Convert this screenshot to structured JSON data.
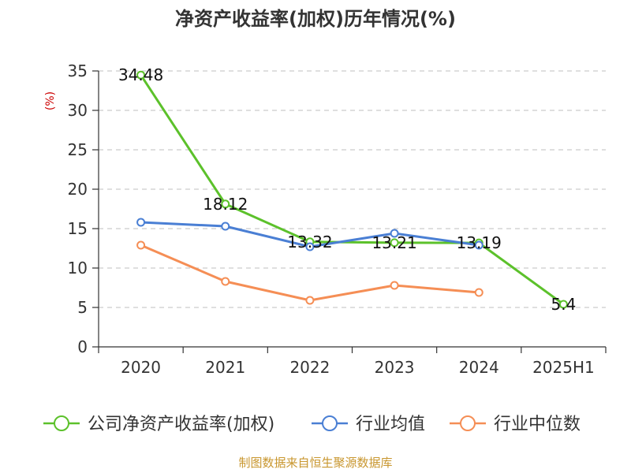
{
  "chart_data": {
    "type": "line",
    "title": "净资产收益率(加权)历年情况(%)",
    "ylabel": "(%)",
    "xlabel": "",
    "categories": [
      "2020",
      "2021",
      "2022",
      "2023",
      "2024",
      "2025H1"
    ],
    "ylim": [
      0,
      35
    ],
    "yticks": [
      0,
      5,
      10,
      15,
      20,
      25,
      30,
      35
    ],
    "grid": true,
    "legend_position": "bottom",
    "series": [
      {
        "name": "公司净资产收益率(加权)",
        "color": "#5cc12b",
        "values": [
          34.48,
          18.12,
          13.32,
          13.21,
          13.19,
          5.4
        ],
        "data_labels": [
          "34.48",
          "18.12",
          "13.32",
          "13.21",
          "13.19",
          "5.4"
        ]
      },
      {
        "name": "行业均值",
        "color": "#4a7fd4",
        "values": [
          15.8,
          15.3,
          12.7,
          14.4,
          12.9,
          null
        ]
      },
      {
        "name": "行业中位数",
        "color": "#f58e55",
        "values": [
          12.9,
          8.3,
          5.9,
          7.8,
          6.9,
          null
        ]
      }
    ]
  },
  "source_note": "制图数据来自恒生聚源数据库"
}
